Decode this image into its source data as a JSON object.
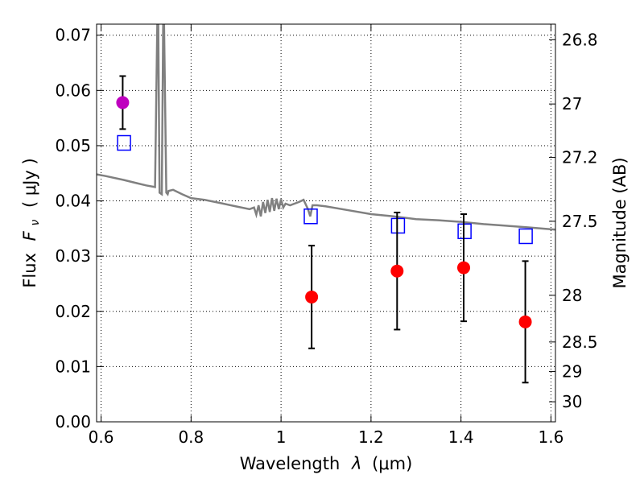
{
  "chart_data": {
    "type": "scatter",
    "xlabel_text": "Wavelength",
    "xlabel_sym": "λ",
    "xlabel_unit": "(μm)",
    "ylabel_text": "Flux",
    "ylabel_sym": "F",
    "ylabel_sub": "ν",
    "ylabel_unit": "( μJy )",
    "y2label": "Magnitude (AB)",
    "xlim": [
      0.59,
      1.61
    ],
    "ylim": [
      0.0,
      0.072
    ],
    "x_ticks": [
      0.6,
      0.8,
      1.0,
      1.2,
      1.4,
      1.6
    ],
    "x_tick_labels": [
      "0.6",
      "0.8",
      "1",
      "1.2",
      "1.4",
      "1.6"
    ],
    "y_ticks": [
      0.0,
      0.01,
      0.02,
      0.03,
      0.04,
      0.05,
      0.06,
      0.07
    ],
    "y_tick_labels": [
      "0.00",
      "0.01",
      "0.02",
      "0.03",
      "0.04",
      "0.05",
      "0.06",
      "0.07"
    ],
    "y2_ticks": [
      26.8,
      27,
      27.2,
      27.5,
      28,
      28.5,
      29,
      30
    ],
    "y2_tick_labels": [
      "26.8",
      "27",
      "27.2",
      "27.5",
      "28",
      "28.5",
      "29",
      "30"
    ],
    "grid": true,
    "colors": {
      "observed": "#ff0000",
      "observed_first": "#bf00bf",
      "model": "#0000ff",
      "spectrum": "#808080",
      "errorbar": "#000000"
    },
    "observed": [
      {
        "x": 0.648,
        "y": 0.0578,
        "err": 0.0048
      },
      {
        "x": 1.068,
        "y": 0.0226,
        "err": 0.0093
      },
      {
        "x": 1.258,
        "y": 0.0273,
        "err": 0.0106
      },
      {
        "x": 1.406,
        "y": 0.0279,
        "err": 0.0097
      },
      {
        "x": 1.543,
        "y": 0.0181,
        "err": 0.011
      }
    ],
    "model_points": [
      {
        "x": 0.651,
        "y": 0.0505
      },
      {
        "x": 1.066,
        "y": 0.0372
      },
      {
        "x": 1.26,
        "y": 0.0355
      },
      {
        "x": 1.408,
        "y": 0.0345
      },
      {
        "x": 1.544,
        "y": 0.0336
      }
    ],
    "spectrum": {
      "x": [
        0.59,
        0.61,
        0.65,
        0.68,
        0.7,
        0.72,
        0.725,
        0.727,
        0.73,
        0.735,
        0.738,
        0.74,
        0.745,
        0.748,
        0.75,
        0.76,
        0.78,
        0.8,
        0.83,
        0.86,
        0.9,
        0.93,
        0.94,
        0.945,
        0.95,
        0.955,
        0.96,
        0.965,
        0.97,
        0.975,
        0.98,
        0.985,
        0.99,
        0.995,
        1.0,
        1.005,
        1.01,
        1.02,
        1.04,
        1.05,
        1.06,
        1.065,
        1.07,
        1.08,
        1.1,
        1.15,
        1.2,
        1.25,
        1.3,
        1.35,
        1.4,
        1.45,
        1.5,
        1.55,
        1.58,
        1.61
      ],
      "y": [
        0.0448,
        0.0445,
        0.0438,
        0.0432,
        0.0428,
        0.0425,
        0.072,
        0.072,
        0.0415,
        0.0412,
        0.072,
        0.072,
        0.0415,
        0.0412,
        0.0418,
        0.042,
        0.0412,
        0.0405,
        0.0402,
        0.0397,
        0.039,
        0.0385,
        0.0388,
        0.0375,
        0.0392,
        0.0372,
        0.0398,
        0.0378,
        0.0402,
        0.038,
        0.0405,
        0.0382,
        0.0404,
        0.0385,
        0.0403,
        0.0388,
        0.0395,
        0.0392,
        0.0398,
        0.0402,
        0.0385,
        0.0372,
        0.0392,
        0.0392,
        0.039,
        0.0383,
        0.0376,
        0.0372,
        0.0367,
        0.0365,
        0.0362,
        0.0358,
        0.0355,
        0.0352,
        0.035,
        0.0348
      ]
    }
  }
}
